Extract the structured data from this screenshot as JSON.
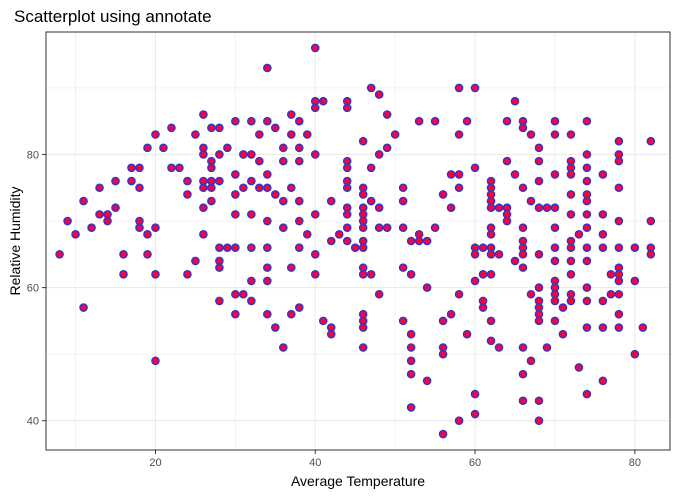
{
  "chart_data": {
    "type": "scatter",
    "title": "Scatterplot using annotate",
    "xlabel": "Average Temperature",
    "ylabel": "Relative Humidity",
    "xlim": [
      6.3,
      84.4
    ],
    "ylim": [
      35.6,
      98.4
    ],
    "xticks": [
      20,
      40,
      60,
      80
    ],
    "yticks": [
      40,
      60,
      80
    ],
    "xtick_labels": [
      "20",
      "40",
      "60",
      "80"
    ],
    "ytick_labels": [
      "40",
      "60",
      "80"
    ],
    "grid": true,
    "point_fill": "#ff0033",
    "point_stroke": "#3333cc",
    "grid_color": "#ebebeb",
    "panel_border": "#333333",
    "points": [
      [
        8,
        65
      ],
      [
        9,
        70
      ],
      [
        10,
        68
      ],
      [
        11,
        73
      ],
      [
        11,
        57
      ],
      [
        12,
        69
      ],
      [
        13,
        71
      ],
      [
        13,
        75
      ],
      [
        14,
        70
      ],
      [
        14,
        71
      ],
      [
        15,
        72
      ],
      [
        15,
        76
      ],
      [
        16,
        65
      ],
      [
        16,
        62
      ],
      [
        17,
        78
      ],
      [
        17,
        76
      ],
      [
        18,
        78
      ],
      [
        18,
        70
      ],
      [
        18,
        69
      ],
      [
        18,
        75
      ],
      [
        19,
        81
      ],
      [
        19,
        68
      ],
      [
        19,
        65
      ],
      [
        20,
        83
      ],
      [
        20,
        69
      ],
      [
        20,
        62
      ],
      [
        20,
        49
      ],
      [
        21,
        81
      ],
      [
        22,
        84
      ],
      [
        22,
        78
      ],
      [
        23,
        78
      ],
      [
        24,
        76
      ],
      [
        24,
        74
      ],
      [
        24,
        62
      ],
      [
        25,
        64
      ],
      [
        25,
        83
      ],
      [
        26,
        86
      ],
      [
        26,
        81
      ],
      [
        26,
        80
      ],
      [
        26,
        76
      ],
      [
        26,
        75
      ],
      [
        26,
        72
      ],
      [
        26,
        68
      ],
      [
        27,
        84
      ],
      [
        27,
        76
      ],
      [
        27,
        75
      ],
      [
        27,
        79
      ],
      [
        27,
        78
      ],
      [
        27,
        73
      ],
      [
        28,
        84
      ],
      [
        28,
        80
      ],
      [
        28,
        76
      ],
      [
        28,
        66
      ],
      [
        28,
        64
      ],
      [
        28,
        63
      ],
      [
        28,
        58
      ],
      [
        29,
        81
      ],
      [
        29,
        66
      ],
      [
        30,
        85
      ],
      [
        30,
        77
      ],
      [
        30,
        74
      ],
      [
        30,
        71
      ],
      [
        30,
        66
      ],
      [
        30,
        59
      ],
      [
        30,
        56
      ],
      [
        31,
        80
      ],
      [
        31,
        59
      ],
      [
        31,
        75
      ],
      [
        32,
        85
      ],
      [
        32,
        80
      ],
      [
        32,
        76
      ],
      [
        32,
        71
      ],
      [
        32,
        66
      ],
      [
        32,
        61
      ],
      [
        32,
        58
      ],
      [
        33,
        83
      ],
      [
        33,
        79
      ],
      [
        33,
        75
      ],
      [
        34,
        93
      ],
      [
        34,
        85
      ],
      [
        34,
        77
      ],
      [
        34,
        75
      ],
      [
        34,
        70
      ],
      [
        34,
        66
      ],
      [
        34,
        63
      ],
      [
        34,
        61
      ],
      [
        34,
        56
      ],
      [
        35,
        84
      ],
      [
        35,
        74
      ],
      [
        35,
        54
      ],
      [
        36,
        81
      ],
      [
        36,
        79
      ],
      [
        36,
        73
      ],
      [
        36,
        69
      ],
      [
        36,
        51
      ],
      [
        37,
        86
      ],
      [
        37,
        83
      ],
      [
        37,
        75
      ],
      [
        37,
        63
      ],
      [
        37,
        56
      ],
      [
        38,
        85
      ],
      [
        38,
        81
      ],
      [
        38,
        79
      ],
      [
        38,
        73
      ],
      [
        38,
        70
      ],
      [
        38,
        57
      ],
      [
        38,
        66
      ],
      [
        39,
        83
      ],
      [
        39,
        68
      ],
      [
        40,
        96
      ],
      [
        40,
        88
      ],
      [
        40,
        87
      ],
      [
        40,
        80
      ],
      [
        40,
        71
      ],
      [
        40,
        65
      ],
      [
        40,
        62
      ],
      [
        41,
        88
      ],
      [
        41,
        55
      ],
      [
        42,
        73
      ],
      [
        42,
        67
      ],
      [
        42,
        54
      ],
      [
        42,
        53
      ],
      [
        43,
        68
      ],
      [
        44,
        88
      ],
      [
        44,
        87
      ],
      [
        44,
        79
      ],
      [
        44,
        78
      ],
      [
        44,
        76
      ],
      [
        44,
        75
      ],
      [
        44,
        72
      ],
      [
        44,
        71
      ],
      [
        44,
        69
      ],
      [
        44,
        67
      ],
      [
        45,
        66
      ],
      [
        46,
        82
      ],
      [
        46,
        75
      ],
      [
        46,
        74
      ],
      [
        46,
        72
      ],
      [
        46,
        71
      ],
      [
        46,
        70
      ],
      [
        46,
        69
      ],
      [
        46,
        67
      ],
      [
        46,
        66
      ],
      [
        46,
        63
      ],
      [
        46,
        62
      ],
      [
        46,
        56
      ],
      [
        46,
        55
      ],
      [
        46,
        54
      ],
      [
        46,
        51
      ],
      [
        47,
        90
      ],
      [
        47,
        78
      ],
      [
        47,
        73
      ],
      [
        47,
        62
      ],
      [
        48,
        89
      ],
      [
        48,
        80
      ],
      [
        48,
        72
      ],
      [
        48,
        69
      ],
      [
        48,
        59
      ],
      [
        49,
        86
      ],
      [
        49,
        81
      ],
      [
        49,
        69
      ],
      [
        50,
        83
      ],
      [
        51,
        75
      ],
      [
        51,
        73
      ],
      [
        51,
        69
      ],
      [
        51,
        63
      ],
      [
        51,
        55
      ],
      [
        52,
        67
      ],
      [
        52,
        62
      ],
      [
        52,
        53
      ],
      [
        52,
        51
      ],
      [
        52,
        49
      ],
      [
        52,
        47
      ],
      [
        52,
        42
      ],
      [
        53,
        85
      ],
      [
        53,
        68
      ],
      [
        53,
        67
      ],
      [
        54,
        67
      ],
      [
        54,
        60
      ],
      [
        54,
        46
      ],
      [
        55,
        85
      ],
      [
        55,
        69
      ],
      [
        56,
        74
      ],
      [
        56,
        55
      ],
      [
        56,
        51
      ],
      [
        56,
        50
      ],
      [
        56,
        38
      ],
      [
        57,
        77
      ],
      [
        57,
        72
      ],
      [
        57,
        56
      ],
      [
        58,
        90
      ],
      [
        58,
        83
      ],
      [
        58,
        77
      ],
      [
        58,
        75
      ],
      [
        58,
        59
      ],
      [
        58,
        40
      ],
      [
        59,
        85
      ],
      [
        59,
        53
      ],
      [
        60,
        90
      ],
      [
        60,
        78
      ],
      [
        60,
        66
      ],
      [
        60,
        65
      ],
      [
        60,
        61
      ],
      [
        60,
        44
      ],
      [
        60,
        41
      ],
      [
        61,
        66
      ],
      [
        61,
        62
      ],
      [
        61,
        58
      ],
      [
        61,
        57
      ],
      [
        62,
        76
      ],
      [
        62,
        75
      ],
      [
        62,
        74
      ],
      [
        62,
        73
      ],
      [
        62,
        72
      ],
      [
        62,
        69
      ],
      [
        62,
        68
      ],
      [
        62,
        66
      ],
      [
        62,
        65
      ],
      [
        62,
        62
      ],
      [
        62,
        55
      ],
      [
        62,
        52
      ],
      [
        63,
        72
      ],
      [
        63,
        65
      ],
      [
        63,
        51
      ],
      [
        64,
        85
      ],
      [
        64,
        79
      ],
      [
        64,
        72
      ],
      [
        64,
        71
      ],
      [
        64,
        70
      ],
      [
        65,
        88
      ],
      [
        65,
        77
      ],
      [
        65,
        64
      ],
      [
        66,
        85
      ],
      [
        66,
        84
      ],
      [
        66,
        75
      ],
      [
        66,
        69
      ],
      [
        66,
        67
      ],
      [
        66,
        66
      ],
      [
        66,
        65
      ],
      [
        66,
        63
      ],
      [
        66,
        51
      ],
      [
        66,
        47
      ],
      [
        66,
        43
      ],
      [
        67,
        83
      ],
      [
        67,
        73
      ],
      [
        67,
        59
      ],
      [
        67,
        49
      ],
      [
        68,
        81
      ],
      [
        68,
        79
      ],
      [
        68,
        76
      ],
      [
        68,
        72
      ],
      [
        68,
        65
      ],
      [
        68,
        60
      ],
      [
        68,
        58
      ],
      [
        68,
        57
      ],
      [
        68,
        56
      ],
      [
        68,
        55
      ],
      [
        68,
        43
      ],
      [
        68,
        40
      ],
      [
        69,
        72
      ],
      [
        69,
        51
      ],
      [
        70,
        85
      ],
      [
        70,
        83
      ],
      [
        70,
        77
      ],
      [
        70,
        72
      ],
      [
        70,
        69
      ],
      [
        70,
        66
      ],
      [
        70,
        64
      ],
      [
        70,
        61
      ],
      [
        70,
        60
      ],
      [
        70,
        59
      ],
      [
        70,
        58
      ],
      [
        70,
        55
      ],
      [
        71,
        57
      ],
      [
        71,
        53
      ],
      [
        72,
        83
      ],
      [
        72,
        79
      ],
      [
        72,
        78
      ],
      [
        72,
        77
      ],
      [
        72,
        74
      ],
      [
        72,
        71
      ],
      [
        72,
        67
      ],
      [
        72,
        66
      ],
      [
        72,
        64
      ],
      [
        72,
        62
      ],
      [
        72,
        59
      ],
      [
        72,
        58
      ],
      [
        73,
        68
      ],
      [
        73,
        48
      ],
      [
        74,
        85
      ],
      [
        74,
        80
      ],
      [
        74,
        78
      ],
      [
        74,
        76
      ],
      [
        74,
        74
      ],
      [
        74,
        73
      ],
      [
        74,
        71
      ],
      [
        74,
        69
      ],
      [
        74,
        66
      ],
      [
        74,
        64
      ],
      [
        74,
        60
      ],
      [
        74,
        58
      ],
      [
        74,
        54
      ],
      [
        74,
        44
      ],
      [
        76,
        77
      ],
      [
        76,
        71
      ],
      [
        76,
        68
      ],
      [
        76,
        66
      ],
      [
        76,
        58
      ],
      [
        76,
        54
      ],
      [
        76,
        46
      ],
      [
        77,
        62
      ],
      [
        77,
        59
      ],
      [
        78,
        82
      ],
      [
        78,
        80
      ],
      [
        78,
        79
      ],
      [
        78,
        75
      ],
      [
        78,
        70
      ],
      [
        78,
        66
      ],
      [
        78,
        63
      ],
      [
        78,
        62
      ],
      [
        78,
        61
      ],
      [
        78,
        59
      ],
      [
        78,
        56
      ],
      [
        78,
        54
      ],
      [
        80,
        66
      ],
      [
        80,
        61
      ],
      [
        80,
        50
      ],
      [
        81,
        54
      ],
      [
        82,
        82
      ],
      [
        82,
        70
      ],
      [
        82,
        66
      ],
      [
        82,
        65
      ]
    ]
  }
}
